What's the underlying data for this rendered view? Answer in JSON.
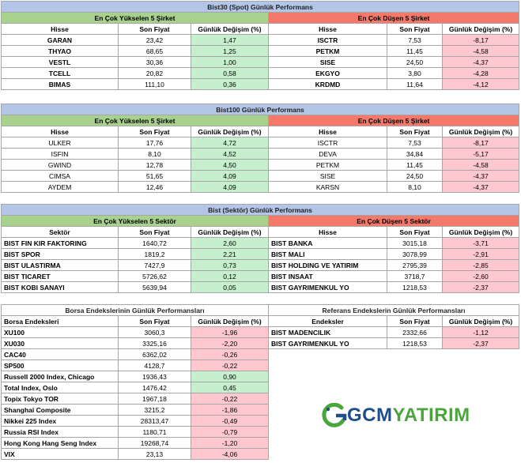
{
  "bist30": {
    "title": "Bist30 (Spot) Günlük Performans",
    "up_title": "En Çok Yükselen 5 Şirket",
    "down_title": "En Çok Düşen 5 Şirket",
    "h_stock": "Hisse",
    "h_price": "Son Fiyat",
    "h_change": "Günlük Değişim (%)",
    "up": [
      {
        "name": "GARAN",
        "price": "23,42",
        "change": "1,47"
      },
      {
        "name": "THYAO",
        "price": "68,65",
        "change": "1,25"
      },
      {
        "name": "VESTL",
        "price": "30,36",
        "change": "1,00"
      },
      {
        "name": "TCELL",
        "price": "20,82",
        "change": "0,58"
      },
      {
        "name": "BIMAS",
        "price": "111,10",
        "change": "0,36"
      }
    ],
    "down": [
      {
        "name": "ISCTR",
        "price": "7,53",
        "change": "-8,17"
      },
      {
        "name": "PETKM",
        "price": "11,45",
        "change": "-4,58"
      },
      {
        "name": "SISE",
        "price": "24,50",
        "change": "-4,37"
      },
      {
        "name": "EKGYO",
        "price": "3,80",
        "change": "-4,28"
      },
      {
        "name": "KRDMD",
        "price": "11,64",
        "change": "-4,12"
      }
    ]
  },
  "bist100": {
    "title": "Bist100 Günlük Performans",
    "up_title": "En Çok Yükselen 5 Şirket",
    "down_title": "En Çok Düşen 5 Şirket",
    "h_stock": "Hisse",
    "h_price": "Son Fiyat",
    "h_change": "Günlük Değişim (%)",
    "up": [
      {
        "name": "ULKER",
        "price": "17,76",
        "change": "4,72"
      },
      {
        "name": "ISFIN",
        "price": "8,10",
        "change": "4,52"
      },
      {
        "name": "GWIND",
        "price": "12,78",
        "change": "4,50"
      },
      {
        "name": "CIMSA",
        "price": "51,65",
        "change": "4,09"
      },
      {
        "name": "AYDEM",
        "price": "12,46",
        "change": "4,09"
      }
    ],
    "down": [
      {
        "name": "ISCTR",
        "price": "7,53",
        "change": "-8,17"
      },
      {
        "name": "DEVA",
        "price": "34,84",
        "change": "-5,17"
      },
      {
        "name": "PETKM",
        "price": "11,45",
        "change": "-4,58"
      },
      {
        "name": "SISE",
        "price": "24,50",
        "change": "-4,37"
      },
      {
        "name": "KARSN",
        "price": "8,10",
        "change": "-4,37"
      }
    ]
  },
  "sector": {
    "title": "Bist (Sektör) Günlük Performans",
    "up_title": "En Çok Yükselen 5 Sektör",
    "down_title": "En Çok Düşen 5 Sektör",
    "h_sector": "Sektör",
    "h_stock": "Hisse",
    "h_price": "Son Fiyat",
    "h_change": "Günlük Değişim (%)",
    "up": [
      {
        "name": "BIST FIN KIR FAKTORING",
        "price": "1640,72",
        "change": "2,60"
      },
      {
        "name": "BIST SPOR",
        "price": "1819,2",
        "change": "2,21"
      },
      {
        "name": "BIST ULASTIRMA",
        "price": "7427,9",
        "change": "0,73"
      },
      {
        "name": "BIST TICARET",
        "price": "5726,62",
        "change": "0,12"
      },
      {
        "name": "BIST KOBI SANAYI",
        "price": "5639,94",
        "change": "0,05"
      }
    ],
    "down": [
      {
        "name": "BIST BANKA",
        "price": "3015,18",
        "change": "-3,71"
      },
      {
        "name": "BIST MALI",
        "price": "3078,99",
        "change": "-2,91"
      },
      {
        "name": "BIST HOLDING VE YATIRIM",
        "price": "2795,39",
        "change": "-2,85"
      },
      {
        "name": "BIST INSAAT",
        "price": "3718,7",
        "change": "-2,60"
      },
      {
        "name": "BIST GAYRIMENKUL YO",
        "price": "1218,53",
        "change": "-2,37"
      }
    ]
  },
  "indices": {
    "left_title": "Borsa Endekslerinin Günlük Performansları",
    "right_title": "Referans Endekslerin  Günlük Performansları",
    "h_left_name": "Borsa Endeksleri",
    "h_right_name": "Endeksler",
    "h_price": "Son Fiyat",
    "h_change": "Günlük Değişim (%)",
    "left": [
      {
        "name": "XU100",
        "price": "3060,3",
        "change": "-1,96"
      },
      {
        "name": "XU030",
        "price": "3325,16",
        "change": "-2,20"
      },
      {
        "name": "CAC40",
        "price": "6362,02",
        "change": "-0,26"
      },
      {
        "name": "SP500",
        "price": "4128,7",
        "change": "-0,22"
      },
      {
        "name": "Russell 2000 Index, Chicago",
        "price": "1936,43",
        "change": "0,90"
      },
      {
        "name": "Total Index, Oslo",
        "price": "1476,42",
        "change": "0,45"
      },
      {
        "name": "Topix Tokyo TOR",
        "price": "1967,18",
        "change": "-0,22"
      },
      {
        "name": "Shanghai Composite",
        "price": "3215,2",
        "change": "-1,86"
      },
      {
        "name": "Nikkei 225 Index",
        "price": "28313,47",
        "change": "-0,49"
      },
      {
        "name": "Russia RSI Index",
        "price": "1180,71",
        "change": "-0,79"
      },
      {
        "name": "Hong Kong Hang Seng Index",
        "price": "19268,74",
        "change": "-1,20"
      },
      {
        "name": "VIX",
        "price": "23,13",
        "change": "-4,06"
      }
    ],
    "right": [
      {
        "name": "BIST MADENCILIK",
        "price": "2332,66",
        "change": "-1,12"
      },
      {
        "name": "BIST GAYRIMENKUL YO",
        "price": "1218,53",
        "change": "-2,37"
      }
    ]
  },
  "logo": {
    "part1": "GCM",
    "part2": "YATIRIM",
    "blue": "#1f4e8c",
    "green": "#4aa63c"
  }
}
